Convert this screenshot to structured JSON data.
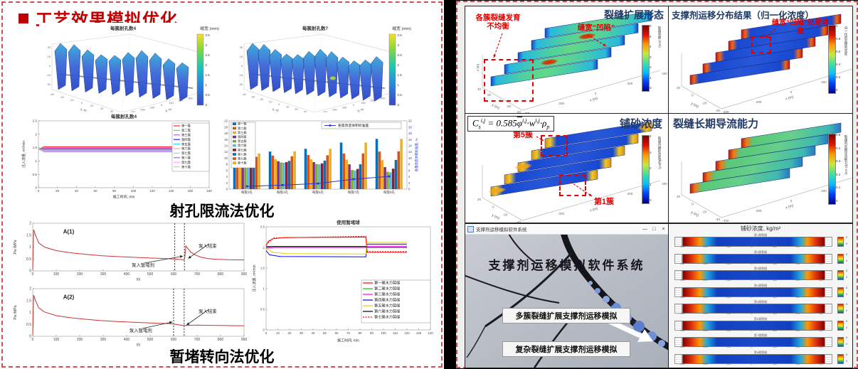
{
  "left": {
    "title": "工艺效果模拟优化",
    "caption_perforation": "射孔限流法优化",
    "caption_diversion": "暂堵转向法优化",
    "fin_plot_a": {
      "title": "每簇射孔数4",
      "colorbar_label": "缝宽 (mm)",
      "colorbar_ticks": [
        "3.5",
        "3",
        "2.5",
        "2",
        "1.5",
        "1",
        "0.5",
        "0"
      ],
      "x_label": "x, m",
      "y_label": "y, m",
      "x_ticks": [
        "-30",
        "-20",
        "-10",
        "0",
        "10",
        "20",
        "30",
        "40"
      ],
      "y_ticks": [
        "400",
        "300",
        "200",
        "100",
        "0",
        "-100",
        "-200",
        "-300",
        "-400"
      ],
      "z_ticks": [
        "30",
        "15",
        "0",
        "-15",
        "-30"
      ]
    },
    "fin_plot_b": {
      "title": "每簇射孔数7",
      "colorbar_label": "缝宽 (mm)",
      "colorbar_ticks": [
        "3.5",
        "3",
        "2.5",
        "2",
        "1.5",
        "1",
        "0.5",
        "0"
      ],
      "x_label": "x, m",
      "y_label": "y, m",
      "x_ticks": [
        "-40",
        "-30",
        "-20",
        "-10",
        "0",
        "10",
        "20",
        "30",
        "40"
      ],
      "y_ticks": [
        "400",
        "300",
        "200",
        "100",
        "0",
        "-100",
        "-200",
        "-300",
        "-400"
      ],
      "z_ticks": [
        "30",
        "15",
        "0",
        "-15",
        "-30"
      ]
    }
  },
  "right": {
    "frac_morphology": {
      "title": "裂缝扩展形态",
      "ann_clusters": "各簇裂缝发育不均衡",
      "ann_width": "缝宽“凹陷”",
      "colorbar_label": "裂缝宽度 (mm)",
      "colorbar_ticks": [
        "6",
        "5",
        "4",
        "3",
        "2",
        "1",
        "0"
      ],
      "x_label": "x (m)",
      "y_label": "y (m)",
      "z_label": "z (m)",
      "x_ticks": [
        "-400",
        "-200",
        "0",
        "200",
        "400"
      ],
      "y_ticks": [
        "40",
        "20",
        "0",
        "-20",
        "-40"
      ]
    },
    "proppant_dist": {
      "title": "支撑剂运移分布结果（归一化浓度）",
      "ann": "缝宽“凹陷”处易堵塞",
      "colorbar_label": "归一化的支撑剂浓度",
      "colorbar_ticks": [
        "1",
        "0.8",
        "0.6",
        "0.4",
        "0.2",
        "0"
      ],
      "x_label": "x (m)",
      "y_label": "y (m)",
      "x_ticks": [
        "-400",
        "-200",
        "0",
        "200",
        "400"
      ],
      "y_ticks": [
        "20",
        "0",
        "-20",
        "-40"
      ]
    },
    "sand_conc": {
      "title": "铺砂浓度",
      "ann_cluster5": "第5簇",
      "ann_cluster1": "第1簇",
      "colorbar_label": "裂缝内铺砂浓度(kg/m²)",
      "colorbar_ticks": [
        "4",
        "3",
        "2",
        "1",
        "0"
      ],
      "x_label": "x (m)",
      "y_label": "y (m)",
      "x_ticks": [
        "-400",
        "-200",
        "0",
        "200",
        "400"
      ],
      "y_ticks": [
        "20",
        "0",
        "-20",
        "-40"
      ],
      "formula": {
        "lhs": "C",
        "lhs_sub": "s",
        "lhs_sup": "i,j",
        "mid": " = 0.585",
        "phi": "φ",
        "phi_sup": "i,j",
        "dot1": "·",
        "w": "w",
        "w_sup": "i,j",
        "dot2": "·",
        "rho": "ρ",
        "rho_sub": "p"
      }
    },
    "conductivity": {
      "title": "裂缝长期导流能力",
      "colorbar_label": "裂缝内长期导流能力/(D·cm)",
      "colorbar_ticks": [
        "0.5",
        "0.4",
        "0.3",
        "0.2",
        "0.1",
        "0"
      ],
      "x_label": "x (m)",
      "y_label": "y (m)",
      "x_ticks": [
        "-400",
        "-200",
        "0",
        "200",
        "400"
      ],
      "y_ticks": [
        "20",
        "0",
        "-20",
        "-40"
      ]
    },
    "software": {
      "titlebar": "支撑剂运移模拟软件系统",
      "controls": [
        "—",
        "□",
        "×"
      ],
      "heading": "支撑剂运移模拟软件系统",
      "button_multi": "多簇裂缝扩展支撑剂运移模拟",
      "button_complex": "复杂裂缝扩展支撑剂运移模拟"
    },
    "stack": {
      "title": "铺砂浓度, kg/m²",
      "row_labels": [
        "第1簇裂缝",
        "第2簇裂缝",
        "第3簇裂缝",
        "第4簇裂缝",
        "第5簇裂缝",
        "第6簇裂缝",
        "第7簇裂缝",
        "第8簇裂缝"
      ],
      "x_ticks": [
        "-300",
        "-200",
        "-100",
        "0",
        "100",
        "200",
        "300"
      ],
      "x_label": "x (m)",
      "cb_max": "5",
      "cb_min": "0"
    }
  },
  "chart_data": [
    {
      "id": "injection_by_cluster",
      "type": "line",
      "title": "每簇射孔数4",
      "xlabel": "施工时间, min",
      "ylabel": "注入流量, m³/min",
      "xlim": [
        0,
        180
      ],
      "ylim": [
        0,
        2.5
      ],
      "xticks": [
        0,
        20,
        40,
        60,
        80,
        100,
        120,
        140,
        160,
        180
      ],
      "yticks": [
        0,
        0.5,
        1,
        1.5,
        2,
        2.5
      ],
      "legend_pos": "right",
      "series": [
        {
          "name": "第一簇",
          "color": "#ff2020",
          "points": [
            [
              0,
              1.44
            ],
            [
              6,
              1.53
            ],
            [
              145,
              1.53
            ]
          ]
        },
        {
          "name": "第二簇",
          "color": "#50e050",
          "points": [
            [
              0,
              1.44
            ],
            [
              6,
              1.5
            ],
            [
              145,
              1.5
            ]
          ]
        },
        {
          "name": "第三簇",
          "color": "#ff40ff",
          "points": [
            [
              0,
              1.44
            ],
            [
              6,
              1.47
            ],
            [
              145,
              1.47
            ]
          ]
        },
        {
          "name": "第四簇",
          "color": "#2828ff",
          "points": [
            [
              0,
              1.44
            ],
            [
              6,
              1.45
            ],
            [
              145,
              1.45
            ]
          ]
        },
        {
          "name": "第五簇",
          "color": "#28d8d8",
          "points": [
            [
              0,
              1.44
            ],
            [
              6,
              1.43
            ],
            [
              145,
              1.43
            ]
          ]
        },
        {
          "name": "第六簇",
          "color": "#ffa0a0",
          "points": [
            [
              0,
              1.44
            ],
            [
              6,
              1.41
            ],
            [
              145,
              1.41
            ]
          ]
        },
        {
          "name": "第七簇",
          "color": "#a0c8ff",
          "points": [
            [
              0,
              1.44
            ],
            [
              6,
              1.39
            ],
            [
              145,
              1.39
            ]
          ]
        },
        {
          "name": "第八簇",
          "color": "#a060ff",
          "points": [
            [
              0,
              1.44
            ],
            [
              6,
              1.37
            ],
            [
              145,
              1.37
            ]
          ]
        },
        {
          "name": "第九簇",
          "color": "#ffa0ff",
          "points": [
            [
              0,
              1.44
            ],
            [
              6,
              1.35
            ],
            [
              145,
              1.35
            ]
          ]
        },
        {
          "name": "第十簇",
          "color": "#c8c8c8",
          "points": [
            [
              0,
              1.44
            ],
            [
              6,
              1.33
            ],
            [
              145,
              1.33
            ]
          ]
        }
      ]
    },
    {
      "id": "frac_volume_bars",
      "type": "bar",
      "categories": [
        "每簇3孔",
        "每簇4孔",
        "每簇5孔",
        "每簇7孔",
        "每簇9孔"
      ],
      "ylim": [
        0,
        22
      ],
      "yticks": [
        0,
        2,
        4,
        6,
        8,
        10,
        12,
        14,
        16,
        18,
        20,
        22
      ],
      "right_axis_label": "各簇改造体积标准差, %",
      "overlay": {
        "label": "各簇改造体积标准差",
        "color": "#3333cc",
        "values": [
          0.9,
          1.3,
          1.8,
          3.2,
          4.1
        ]
      },
      "series": [
        {
          "name": "第一簇",
          "color": "#0072BD",
          "values": [
            11.5,
            12.1,
            13.0,
            15.0,
            16.2
          ]
        },
        {
          "name": "第二簇",
          "color": "#D95319",
          "values": [
            10.7,
            10.8,
            11.0,
            11.5,
            12.1
          ]
        },
        {
          "name": "第三簇",
          "color": "#EDB120",
          "values": [
            9.6,
            9.6,
            9.6,
            9.5,
            9.4
          ]
        },
        {
          "name": "第四簇",
          "color": "#7E2F8E",
          "values": [
            9.2,
            9.0,
            8.7,
            8.0,
            7.1
          ]
        },
        {
          "name": "第五簇",
          "color": "#77AC30",
          "values": [
            9.0,
            8.6,
            8.1,
            6.2,
            5.6
          ]
        },
        {
          "name": "第六簇",
          "color": "#4DBEEE",
          "values": [
            9.0,
            8.5,
            8.0,
            6.0,
            5.4
          ]
        },
        {
          "name": "第七簇",
          "color": "#A2142F",
          "values": [
            9.1,
            8.7,
            8.3,
            6.5,
            6.6
          ]
        },
        {
          "name": "第八簇",
          "color": "#0072BD",
          "values": [
            9.3,
            9.1,
            9.2,
            8.0,
            9.4
          ]
        },
        {
          "name": "第九簇",
          "color": "#D95319",
          "values": [
            10.4,
            10.6,
            10.9,
            11.5,
            12.2
          ]
        },
        {
          "name": "第十簇",
          "color": "#EDB120",
          "values": [
            11.5,
            12.2,
            13.0,
            15.0,
            16.2
          ]
        }
      ]
    },
    {
      "id": "pressure_a1",
      "type": "line",
      "label": "A(1)",
      "xlabel": "t/s",
      "ylabel": "P_w /MPa",
      "xlim": [
        0,
        900
      ],
      "ylim": [
        0,
        2
      ],
      "xticks": [
        0,
        100,
        200,
        300,
        400,
        500,
        600,
        700,
        800,
        900
      ],
      "yticks": [
        0,
        0.5,
        1,
        1.5,
        2
      ],
      "vlines": [
        605,
        646
      ],
      "annotations": [
        {
          "text": "泵入暂堵剂",
          "x": 470,
          "y": 0.24,
          "tx": 640,
          "ty": 0.62
        },
        {
          "text": "泵入结束",
          "x": 745,
          "y": 1.05,
          "tx": 662,
          "ty": 0.52
        }
      ],
      "series": [
        {
          "name": "压力",
          "color": "#cc3333",
          "points": [
            [
              0,
              0.05
            ],
            [
              4,
              1.73
            ],
            [
              10,
              1.55
            ],
            [
              25,
              1.18
            ],
            [
              50,
              1.0
            ],
            [
              100,
              0.85
            ],
            [
              160,
              0.76
            ],
            [
              220,
              0.7
            ],
            [
              290,
              0.64
            ],
            [
              360,
              0.6
            ],
            [
              430,
              0.57
            ],
            [
              500,
              0.54
            ],
            [
              560,
              0.52
            ],
            [
              600,
              0.5
            ],
            [
              630,
              0.48
            ],
            [
              642,
              0.46
            ],
            [
              647,
              0.5
            ],
            [
              652,
              1.05
            ],
            [
              660,
              0.95
            ],
            [
              672,
              0.8
            ],
            [
              690,
              0.68
            ],
            [
              715,
              0.58
            ],
            [
              745,
              0.52
            ],
            [
              780,
              0.49
            ],
            [
              830,
              0.47
            ],
            [
              900,
              0.46
            ]
          ]
        }
      ]
    },
    {
      "id": "pressure_a2",
      "type": "line",
      "label": "A(2)",
      "xlabel": "t/s",
      "ylabel": "P_w /MPa",
      "xlim": [
        0,
        900
      ],
      "ylim": [
        0,
        2
      ],
      "xticks": [
        0,
        100,
        200,
        300,
        400,
        500,
        600,
        700,
        800,
        900
      ],
      "yticks": [
        0,
        0.5,
        1,
        1.5,
        2
      ],
      "vlines": [
        600,
        645
      ],
      "annotations": [
        {
          "text": "泵入暂堵剂",
          "x": 460,
          "y": 0.24,
          "tx": 595,
          "ty": 0.6
        },
        {
          "text": "泵入结束",
          "x": 745,
          "y": 1.05,
          "tx": 655,
          "ty": 0.47
        }
      ],
      "series": [
        {
          "name": "压力",
          "color": "#cc3333",
          "points": [
            [
              0,
              0.05
            ],
            [
              4,
              1.73
            ],
            [
              10,
              1.55
            ],
            [
              25,
              1.2
            ],
            [
              50,
              1.02
            ],
            [
              100,
              0.87
            ],
            [
              160,
              0.78
            ],
            [
              220,
              0.72
            ],
            [
              290,
              0.66
            ],
            [
              360,
              0.62
            ],
            [
              430,
              0.59
            ],
            [
              500,
              0.56
            ],
            [
              550,
              0.54
            ],
            [
              590,
              0.53
            ],
            [
              610,
              0.5
            ],
            [
              630,
              0.47
            ],
            [
              645,
              0.45
            ],
            [
              665,
              0.46
            ],
            [
              700,
              0.47
            ],
            [
              760,
              0.46
            ],
            [
              820,
              0.45
            ],
            [
              900,
              0.44
            ]
          ]
        }
      ]
    },
    {
      "id": "diverter_balls",
      "type": "line",
      "title": "使用暂堵球",
      "xlabel": "施工时间, min",
      "ylabel": "注入流量, m³/min",
      "xlim": [
        0,
        140
      ],
      "ylim": [
        0,
        2.5
      ],
      "xticks": [
        0,
        10,
        20,
        30,
        40,
        50,
        60,
        70,
        80,
        90,
        100,
        110,
        120,
        130,
        140
      ],
      "yticks": [
        0,
        0.5,
        1,
        1.5,
        2,
        2.5
      ],
      "series": [
        {
          "name": "第一簇水力裂缝",
          "color": "#ff0000",
          "points": [
            [
              0,
              2.05
            ],
            [
              2,
              2.15
            ],
            [
              6,
              2.21
            ],
            [
              15,
              2.24
            ],
            [
              85,
              2.25
            ],
            [
              86,
              1.88
            ],
            [
              120,
              1.88
            ]
          ]
        },
        {
          "name": "第二簇水力裂缝",
          "color": "#00cc00",
          "points": [
            [
              0,
              2.0
            ],
            [
              6,
              2.02
            ],
            [
              85,
              2.02
            ],
            [
              86,
              2.0
            ],
            [
              120,
              2.0
            ]
          ]
        },
        {
          "name": "第三簇水力裂缝",
          "color": "#ff00ff",
          "points": [
            [
              0,
              1.98
            ],
            [
              6,
              2.0
            ],
            [
              85,
              2.0
            ],
            [
              86,
              2.03
            ],
            [
              120,
              2.03
            ]
          ]
        },
        {
          "name": "第四簇水力裂缝",
          "color": "#0000ff",
          "points": [
            [
              0,
              1.92
            ],
            [
              3,
              1.82
            ],
            [
              12,
              1.78
            ],
            [
              85,
              1.77
            ],
            [
              86,
              2.08
            ],
            [
              120,
              2.08
            ]
          ]
        },
        {
          "name": "第五簇水力裂缝",
          "color": "#e8d000",
          "points": [
            [
              0,
              1.97
            ],
            [
              6,
              1.88
            ],
            [
              18,
              1.85
            ],
            [
              85,
              1.84
            ],
            [
              86,
              2.12
            ],
            [
              120,
              2.12
            ]
          ]
        },
        {
          "name": "第六簇水力裂缝",
          "color": "#000000",
          "points": [
            [
              0,
              2.02
            ],
            [
              85,
              2.02
            ],
            [
              86,
              2.0
            ],
            [
              120,
              2.0
            ]
          ]
        },
        {
          "name": "第七簇水力裂缝",
          "color": "#ff0000",
          "dash": "2 1.6",
          "points": [
            [
              0,
              2.06
            ],
            [
              6,
              2.23
            ],
            [
              85,
              2.27
            ],
            [
              86,
              1.9
            ],
            [
              120,
              1.9
            ]
          ]
        }
      ]
    }
  ]
}
